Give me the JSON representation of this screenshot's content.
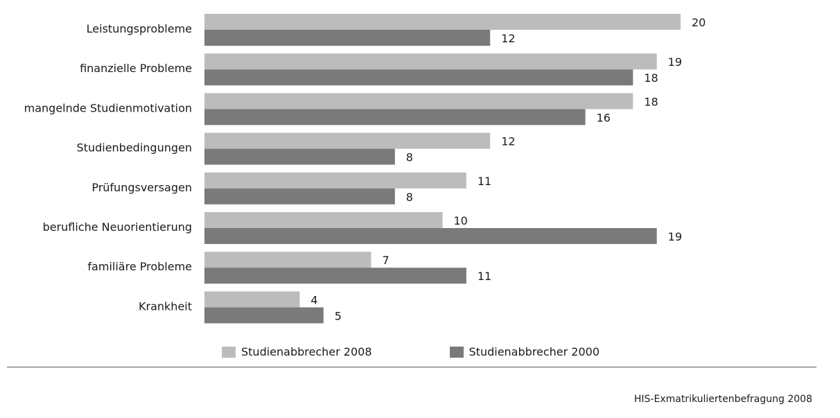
{
  "chart_data": {
    "type": "bar",
    "orientation": "horizontal",
    "categories": [
      "Leistungsprobleme",
      "finanzielle Probleme",
      "mangelnde Studienmotivation",
      "Studienbedingungen",
      "Prüfungsversagen",
      "berufliche Neuorientierung",
      "familiäre Probleme",
      "Krankheit"
    ],
    "series": [
      {
        "name": "Studienabbrecher 2008",
        "color": "#bcbcbc",
        "values": [
          20,
          19,
          18,
          12,
          11,
          10,
          7,
          4
        ]
      },
      {
        "name": "Studienabbrecher 2000",
        "color": "#7a7a7a",
        "values": [
          12,
          18,
          16,
          8,
          8,
          19,
          11,
          5
        ]
      }
    ],
    "xlim": [
      0,
      20
    ],
    "grid": false,
    "legend_position": "bottom",
    "source": "HIS-Exmatrikuliertenbefragung 2008"
  }
}
